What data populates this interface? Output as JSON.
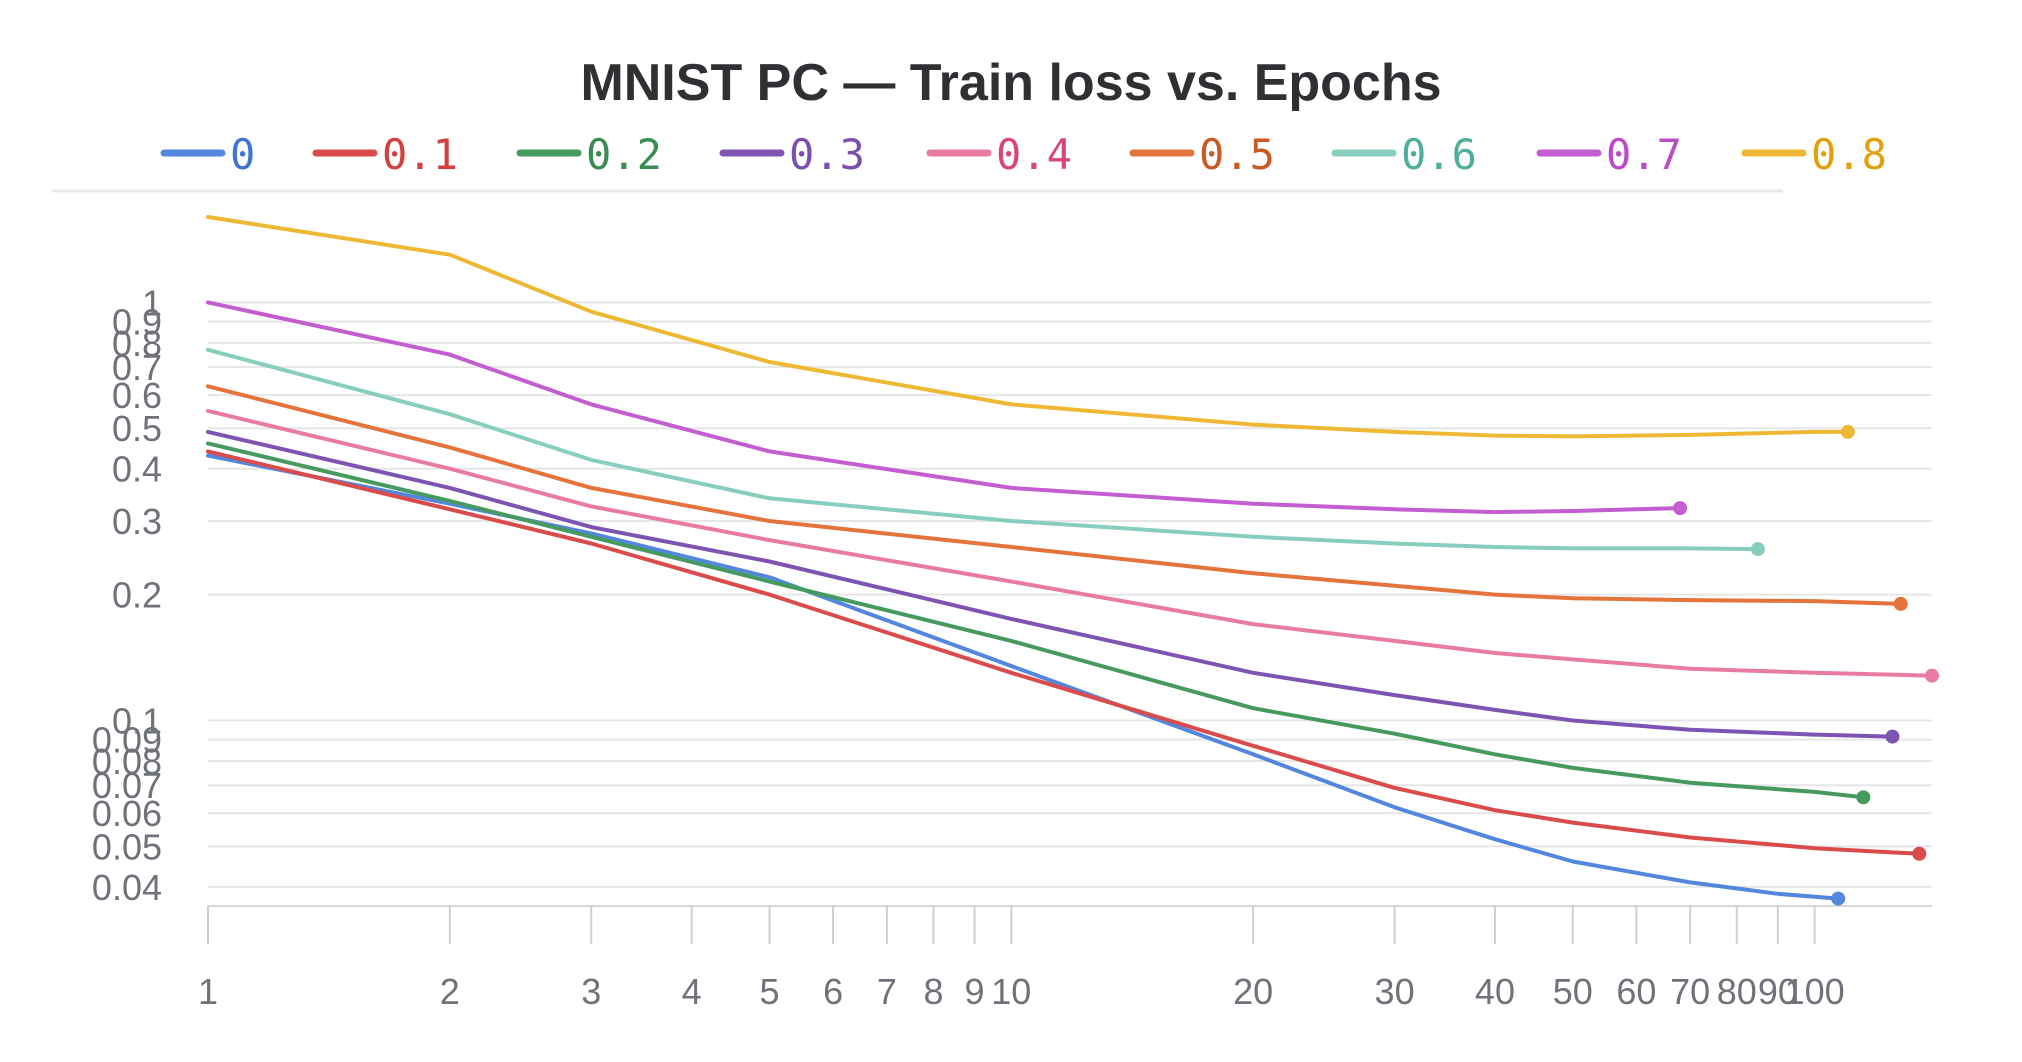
{
  "chart_data": {
    "type": "line",
    "title": "MNIST PC — Train loss vs. Epochs",
    "xlabel": "",
    "ylabel": "",
    "x_scale": "log",
    "y_scale": "log",
    "xlim": [
      1,
      140
    ],
    "ylim": [
      0.036,
      1.7
    ],
    "grid": true,
    "legend_position": "top",
    "x_ticks": [
      1,
      2,
      3,
      4,
      5,
      6,
      7,
      8,
      9,
      10,
      20,
      30,
      40,
      50,
      60,
      70,
      80,
      90,
      100
    ],
    "x_tick_labels": [
      "1",
      "2",
      "3",
      "4",
      "5",
      "6",
      "7",
      "8",
      "9",
      "10",
      "20",
      "30",
      "40",
      "50",
      "60",
      "70",
      "80",
      "90",
      "100"
    ],
    "y_ticks": [
      0.04,
      0.05,
      0.06,
      0.07,
      0.08,
      0.09,
      0.1,
      0.2,
      0.3,
      0.4,
      0.5,
      0.6,
      0.7,
      0.8,
      0.9,
      1
    ],
    "y_tick_labels": [
      "0.04",
      "0.05",
      "0.06",
      "0.07",
      "0.08",
      "0.09",
      "0.1",
      "0.2",
      "0.3",
      "0.4",
      "0.5",
      "0.6",
      "0.7",
      "0.8",
      "0.9",
      "1"
    ],
    "series": [
      {
        "name": "0",
        "color": "#5387dd",
        "label_color": "#3f74d4",
        "points": [
          [
            1,
            0.43
          ],
          [
            2,
            0.33
          ],
          [
            3,
            0.28
          ],
          [
            5,
            0.22
          ],
          [
            10,
            0.135
          ],
          [
            20,
            0.083
          ],
          [
            30,
            0.062
          ],
          [
            40,
            0.052
          ],
          [
            50,
            0.046
          ],
          [
            70,
            0.041
          ],
          [
            90,
            0.0385
          ],
          [
            107,
            0.0375
          ]
        ]
      },
      {
        "name": "0.1",
        "color": "#da4c4c",
        "label_color": "#d33f3f",
        "points": [
          [
            1,
            0.44
          ],
          [
            2,
            0.32
          ],
          [
            3,
            0.265
          ],
          [
            5,
            0.2
          ],
          [
            10,
            0.13
          ],
          [
            20,
            0.087
          ],
          [
            30,
            0.069
          ],
          [
            40,
            0.061
          ],
          [
            50,
            0.057
          ],
          [
            70,
            0.0525
          ],
          [
            100,
            0.0495
          ],
          [
            135,
            0.048
          ]
        ]
      },
      {
        "name": "0.2",
        "color": "#479a5f",
        "label_color": "#3a8c52",
        "points": [
          [
            1,
            0.46
          ],
          [
            2,
            0.335
          ],
          [
            3,
            0.275
          ],
          [
            5,
            0.215
          ],
          [
            10,
            0.155
          ],
          [
            20,
            0.107
          ],
          [
            30,
            0.093
          ],
          [
            40,
            0.083
          ],
          [
            50,
            0.077
          ],
          [
            70,
            0.071
          ],
          [
            100,
            0.0675
          ],
          [
            115,
            0.0655
          ]
        ]
      },
      {
        "name": "0.3",
        "color": "#7d54b2",
        "label_color": "#7a4fb0",
        "points": [
          [
            1,
            0.49
          ],
          [
            2,
            0.36
          ],
          [
            3,
            0.29
          ],
          [
            5,
            0.24
          ],
          [
            10,
            0.175
          ],
          [
            20,
            0.13
          ],
          [
            30,
            0.115
          ],
          [
            40,
            0.106
          ],
          [
            50,
            0.1
          ],
          [
            70,
            0.095
          ],
          [
            100,
            0.0925
          ],
          [
            125,
            0.0915
          ]
        ]
      },
      {
        "name": "0.4",
        "color": "#e87ba4",
        "label_color": "#d8457a",
        "points": [
          [
            1,
            0.55
          ],
          [
            2,
            0.4
          ],
          [
            3,
            0.325
          ],
          [
            5,
            0.27
          ],
          [
            10,
            0.215
          ],
          [
            20,
            0.17
          ],
          [
            30,
            0.155
          ],
          [
            40,
            0.145
          ],
          [
            50,
            0.14
          ],
          [
            70,
            0.133
          ],
          [
            100,
            0.13
          ],
          [
            140,
            0.128
          ]
        ]
      },
      {
        "name": "0.5",
        "color": "#e5743c",
        "label_color": "#c95a22",
        "points": [
          [
            1,
            0.63
          ],
          [
            2,
            0.45
          ],
          [
            3,
            0.36
          ],
          [
            5,
            0.3
          ],
          [
            10,
            0.26
          ],
          [
            20,
            0.225
          ],
          [
            30,
            0.21
          ],
          [
            40,
            0.2
          ],
          [
            50,
            0.196
          ],
          [
            70,
            0.194
          ],
          [
            100,
            0.193
          ],
          [
            128,
            0.19
          ]
        ]
      },
      {
        "name": "0.6",
        "color": "#87cebf",
        "label_color": "#4faf9c",
        "points": [
          [
            1,
            0.77
          ],
          [
            2,
            0.54
          ],
          [
            3,
            0.42
          ],
          [
            5,
            0.34
          ],
          [
            10,
            0.3
          ],
          [
            20,
            0.275
          ],
          [
            30,
            0.265
          ],
          [
            40,
            0.26
          ],
          [
            50,
            0.258
          ],
          [
            70,
            0.258
          ],
          [
            85,
            0.257
          ]
        ]
      },
      {
        "name": "0.7",
        "color": "#c35dd0",
        "label_color": "#bb4cc8",
        "points": [
          [
            1,
            1.0
          ],
          [
            2,
            0.75
          ],
          [
            3,
            0.57
          ],
          [
            5,
            0.44
          ],
          [
            10,
            0.36
          ],
          [
            20,
            0.33
          ],
          [
            30,
            0.32
          ],
          [
            40,
            0.315
          ],
          [
            50,
            0.317
          ],
          [
            60,
            0.32
          ],
          [
            68,
            0.322
          ]
        ]
      },
      {
        "name": "0.8",
        "color": "#efb834",
        "label_color": "#e0a10c",
        "points": [
          [
            1,
            1.6
          ],
          [
            2,
            1.3
          ],
          [
            3,
            0.95
          ],
          [
            5,
            0.72
          ],
          [
            10,
            0.57
          ],
          [
            20,
            0.51
          ],
          [
            30,
            0.49
          ],
          [
            40,
            0.48
          ],
          [
            50,
            0.478
          ],
          [
            70,
            0.482
          ],
          [
            100,
            0.49
          ],
          [
            110,
            0.49
          ]
        ]
      }
    ]
  }
}
